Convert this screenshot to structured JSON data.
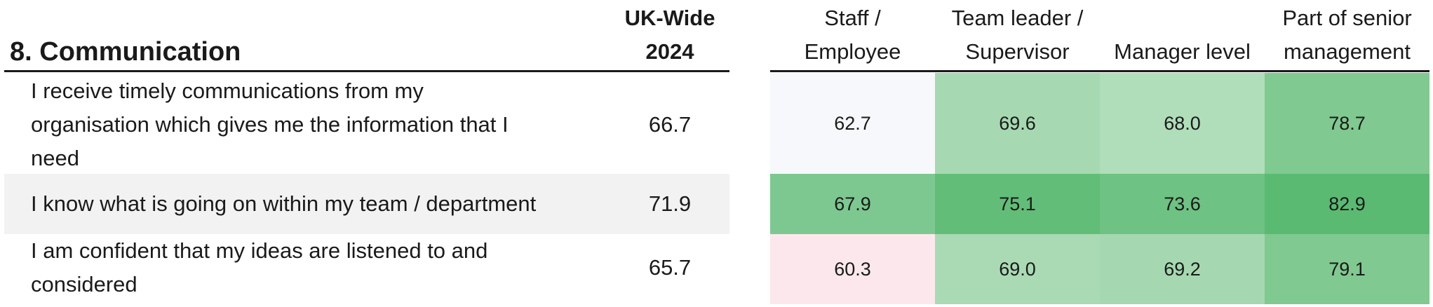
{
  "title": "8. Communication",
  "headers": {
    "uk_wide": [
      "UK-Wide",
      "2024"
    ],
    "groups": [
      [
        "Staff /",
        "Employee"
      ],
      [
        "Team leader /",
        "Supervisor"
      ],
      [
        "",
        "Manager level"
      ],
      [
        "Part of senior",
        "management"
      ]
    ]
  },
  "chart_data": {
    "type": "heatmap",
    "title": "8. Communication",
    "columns": [
      "UK-Wide 2024",
      "Staff / Employee",
      "Team leader / Supervisor",
      "Manager level",
      "Part of senior management"
    ],
    "rows": [
      {
        "question": [
          "I receive timely communications from my",
          "organisation which gives me the information that I",
          "need"
        ],
        "uk_wide": "66.7",
        "values": [
          "62.7",
          "69.6",
          "68.0",
          "78.7"
        ],
        "colors": [
          "#f7f8fb",
          "#a6d9b1",
          "#b0ddba",
          "#80c990"
        ]
      },
      {
        "question": [
          "I know what is going on within my team / department"
        ],
        "uk_wide": "71.9",
        "values": [
          "67.9",
          "75.1",
          "73.6",
          "82.9"
        ],
        "colors": [
          "#7dc890",
          "#62bd78",
          "#6ec283",
          "#5aba72"
        ]
      },
      {
        "question": [
          "I am confident that my ideas are listened to and",
          "considered"
        ],
        "uk_wide": "65.7",
        "values": [
          "60.3",
          "69.0",
          "69.2",
          "79.1"
        ],
        "colors": [
          "#fce8ec",
          "#a9dab4",
          "#a5d8b0",
          "#80c990"
        ]
      }
    ]
  }
}
